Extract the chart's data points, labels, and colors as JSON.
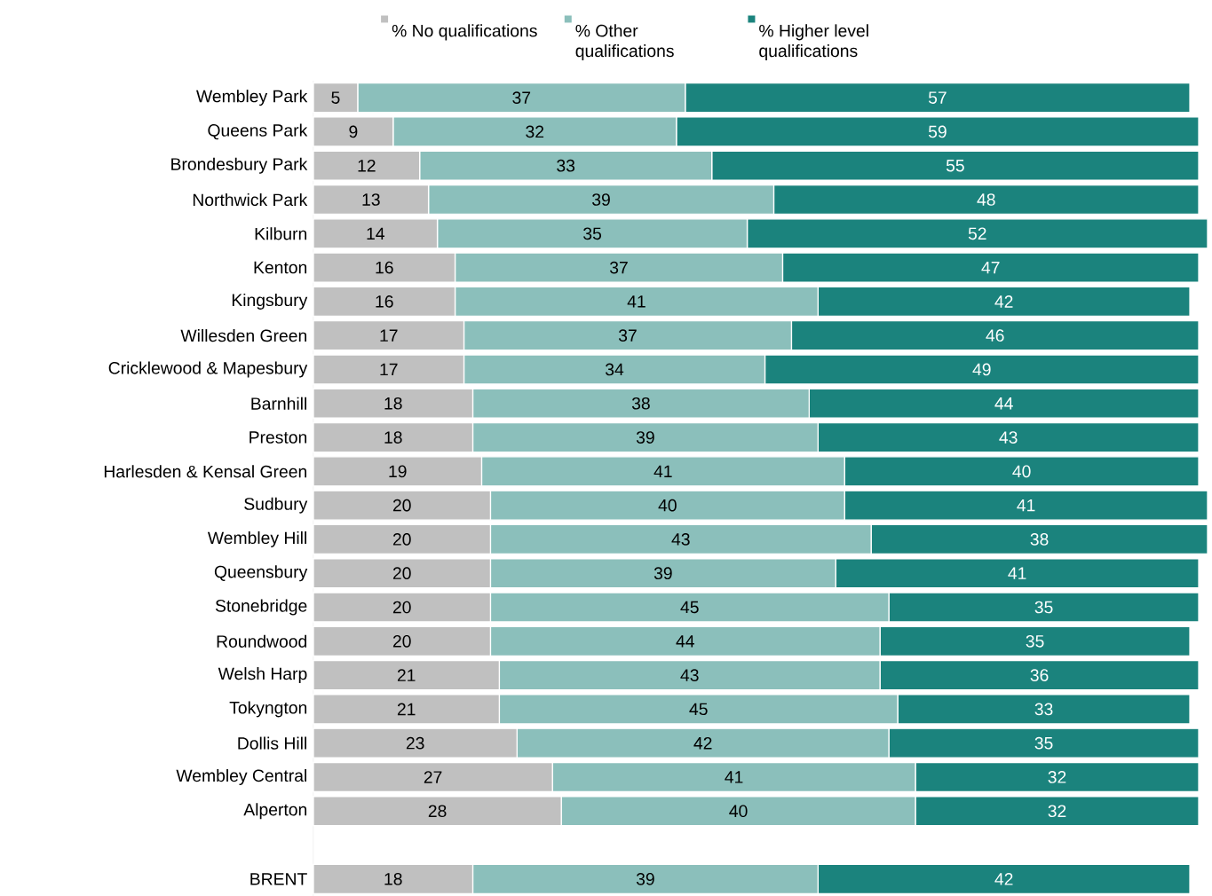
{
  "chart_data": {
    "type": "bar",
    "orientation": "horizontal",
    "stacked": true,
    "data_labels": true,
    "legend": "top",
    "tick_labels": "y",
    "categories": [
      "Wembley Park",
      "Queens Park",
      "Brondesbury Park",
      "Northwick Park",
      "Kilburn",
      "Kenton",
      "Kingsbury",
      "Willesden Green",
      "Cricklewood & Mapesbury",
      "Barnhill",
      "Preston",
      "Harlesden & Kensal Green",
      "Sudbury",
      "Wembley Hill",
      "Queensbury",
      "Stonebridge",
      "Roundwood",
      "Welsh Harp",
      "Tokyngton",
      "Dollis Hill",
      "Wembley Central",
      "Alperton",
      null,
      "BRENT"
    ],
    "series": [
      {
        "name": "% No qualifications",
        "color": "#c0c0c0",
        "values": [
          5,
          9,
          12,
          13,
          14,
          16,
          16,
          17,
          17,
          18,
          18,
          19,
          20,
          20,
          20,
          20,
          20,
          21,
          21,
          23,
          27,
          28,
          null,
          18
        ]
      },
      {
        "name": "% Other qualifications",
        "color": "#8bbfbb",
        "values": [
          37,
          32,
          33,
          39,
          35,
          37,
          41,
          37,
          34,
          38,
          39,
          41,
          40,
          43,
          39,
          45,
          44,
          43,
          45,
          42,
          41,
          40,
          null,
          39
        ]
      },
      {
        "name": "% Higher level qualifications",
        "color": "#1b837d",
        "values": [
          57,
          59,
          55,
          48,
          52,
          47,
          42,
          46,
          49,
          44,
          43,
          40,
          41,
          38,
          41,
          35,
          35,
          36,
          33,
          35,
          32,
          32,
          null,
          42
        ]
      }
    ]
  }
}
